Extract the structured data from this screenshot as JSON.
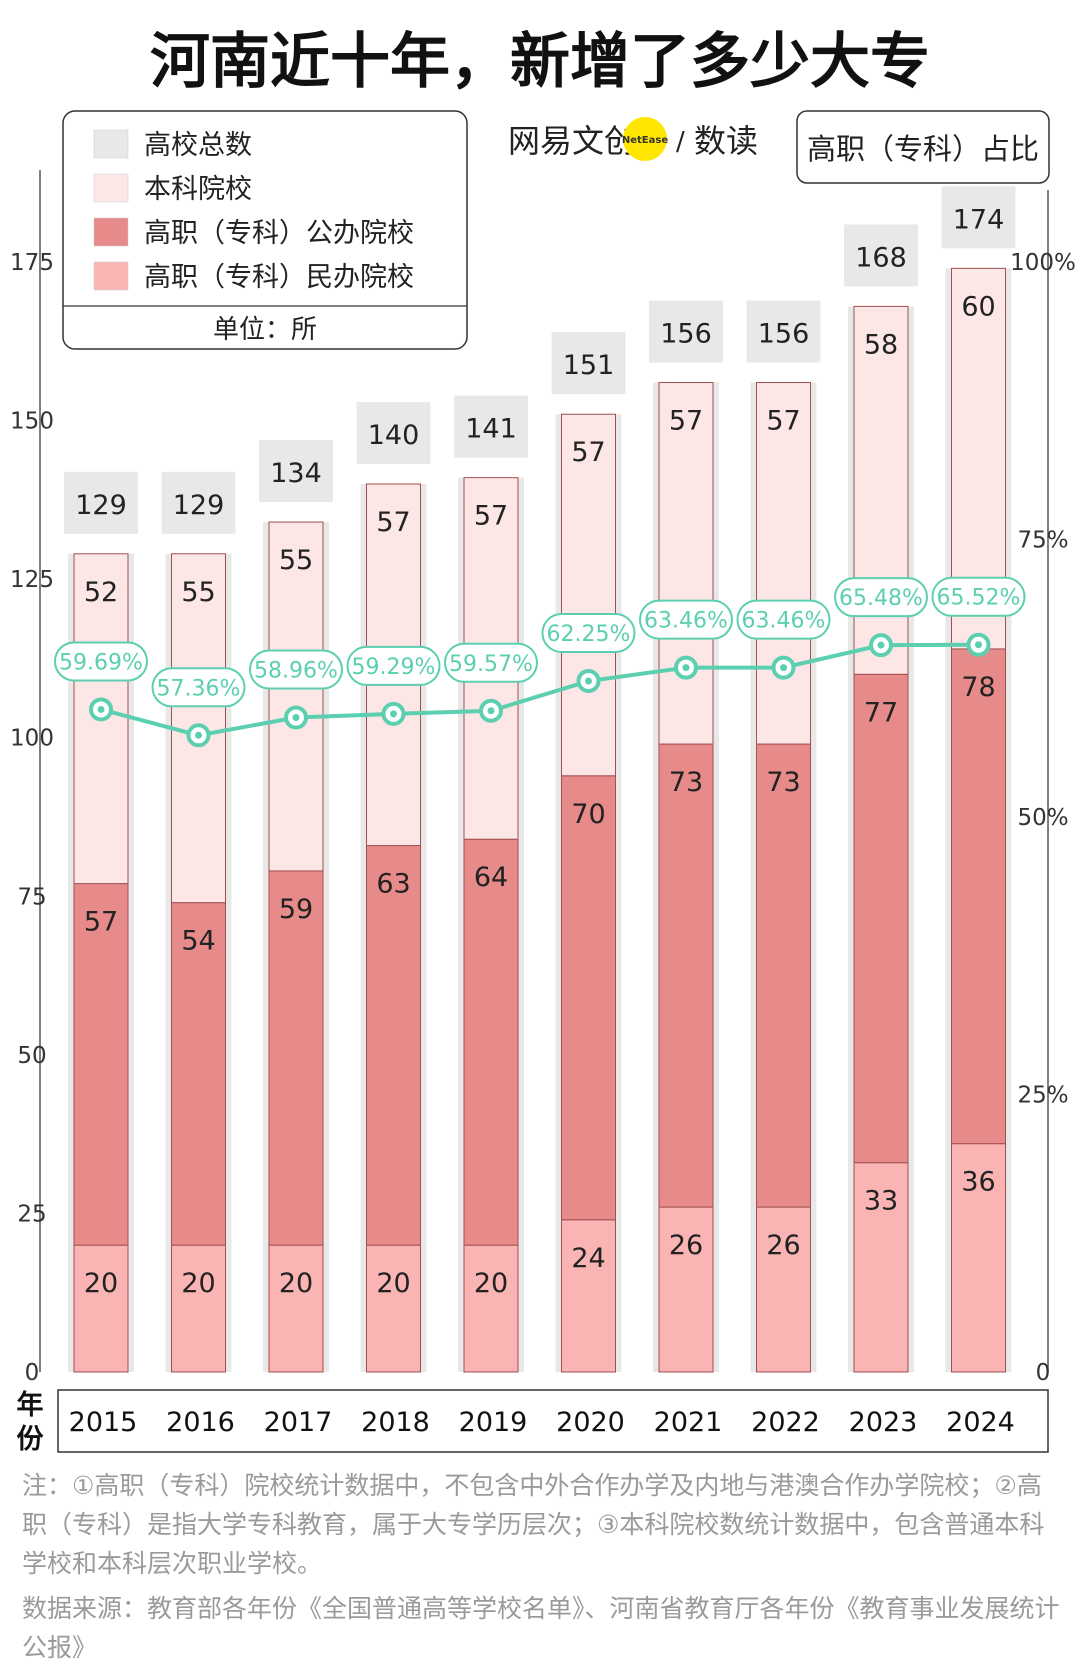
{
  "title": "河南近十年，新增了多少大专",
  "brand": {
    "left": "网易文创",
    "badge": "NetEase",
    "slash": "/",
    "right": "数读",
    "badge_color": "#ffe600"
  },
  "legend": {
    "items": [
      {
        "label": "高校总数",
        "color": "#e8e8e8"
      },
      {
        "label": "本科院校",
        "color": "#fde6e6"
      },
      {
        "label": "高职（专科）公办院校",
        "color": "#e68a8a"
      },
      {
        "label": "高职（专科）民办院校",
        "color": "#fab4b4"
      }
    ],
    "unit": "单位：所"
  },
  "chart_data": {
    "type": "bar",
    "stacked": true,
    "categories": [
      "2015",
      "2016",
      "2017",
      "2018",
      "2019",
      "2020",
      "2021",
      "2022",
      "2023",
      "2024"
    ],
    "xlabel": "年份",
    "ylim": [
      0,
      175
    ],
    "yticks": [
      0,
      25,
      50,
      75,
      100,
      125,
      150,
      175
    ],
    "totals": {
      "name": "高校总数",
      "values": [
        129,
        129,
        134,
        140,
        141,
        151,
        156,
        156,
        168,
        174
      ]
    },
    "series": [
      {
        "name": "高职（专科）民办院校",
        "values": [
          20,
          20,
          20,
          20,
          20,
          24,
          26,
          26,
          33,
          36
        ],
        "color": "#fab4b4"
      },
      {
        "name": "高职（专科）公办院校",
        "values": [
          57,
          54,
          59,
          63,
          64,
          70,
          73,
          73,
          77,
          78
        ],
        "color": "#e68a8a"
      },
      {
        "name": "本科院校",
        "values": [
          52,
          55,
          55,
          57,
          57,
          57,
          57,
          57,
          58,
          60
        ],
        "color": "#fde6e6"
      }
    ],
    "line": {
      "name": "高职（专科）占比",
      "values": [
        59.69,
        57.36,
        58.96,
        59.29,
        59.57,
        62.25,
        63.46,
        63.46,
        65.48,
        65.52
      ],
      "labels": [
        "59.69%",
        "57.36%",
        "58.96%",
        "59.29%",
        "59.57%",
        "62.25%",
        "63.46%",
        "63.46%",
        "65.48%",
        "65.52%"
      ],
      "color": "#5ccfb0",
      "ylim": [
        0,
        100
      ],
      "yticks": [
        "0",
        "25%",
        "50%",
        "75%",
        "100%"
      ]
    }
  },
  "notes": {
    "note": "注：①高职（专科）院校统计数据中，不包含中外合作办学及内地与港澳合作办学院校；②高职（专科）是指大学专科教育，属于大专学历层次；③本科院校数统计数据中，包含普通本科学校和本科层次职业学校。",
    "source": "数据来源：教育部各年份《全国普通高等学校名单》、河南省教育厅各年份《教育事业发展统计公报》"
  }
}
